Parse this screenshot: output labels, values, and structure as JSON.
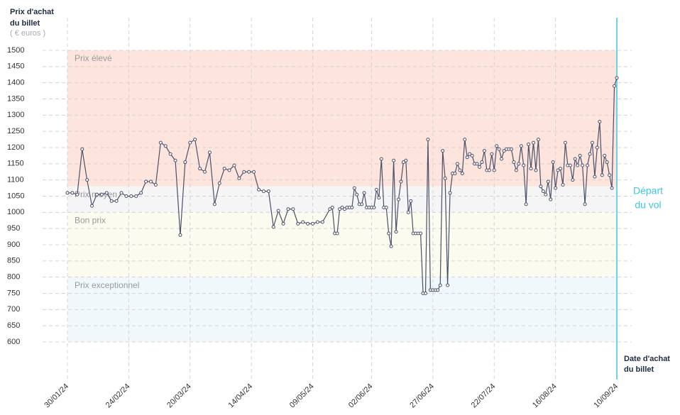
{
  "chart_data": {
    "type": "line",
    "y_title": [
      "Prix d'achat",
      "du billet"
    ],
    "y_unit": "( € euros )",
    "x_title": [
      "Date d'achat",
      "du billet"
    ],
    "departure_label": [
      "Départ",
      "du vol"
    ],
    "departure_color": "#3cc8e0",
    "line_color": "#4a5068",
    "ylim": [
      600,
      1500
    ],
    "yticks": [
      600,
      650,
      700,
      750,
      800,
      850,
      900,
      950,
      1000,
      1050,
      1100,
      1150,
      1200,
      1250,
      1300,
      1350,
      1400,
      1450,
      1500
    ],
    "xlim": [
      "30/01/24",
      "10/09/24"
    ],
    "xticks": [
      "30/01/24",
      "24/02/24",
      "20/03/24",
      "14/04/24",
      "09/05/24",
      "02/06/24",
      "27/06/24",
      "22/07/24",
      "16/08/24",
      "10/09/24"
    ],
    "grid": true,
    "bands": [
      {
        "label": "Prix élevé",
        "from": 1080,
        "to": 1500,
        "color": "#fde5de"
      },
      {
        "label": "Prix moyen",
        "from": 1000,
        "to": 1080,
        "color": "#f5f5f5"
      },
      {
        "label": "Bon prix",
        "from": 800,
        "to": 1000,
        "color": "#fbfbf0"
      },
      {
        "label": "Prix exceptionnel",
        "from": 600,
        "to": 800,
        "color": "#f1f8fc"
      }
    ],
    "x": [
      "30/01/24",
      "01/02/24",
      "03/02/24",
      "05/02/24",
      "07/02/24",
      "09/02/24",
      "11/02/24",
      "13/02/24",
      "15/02/24",
      "17/02/24",
      "19/02/24",
      "21/02/24",
      "23/02/24",
      "25/02/24",
      "27/02/24",
      "29/02/24",
      "02/03/24",
      "04/03/24",
      "06/03/24",
      "08/03/24",
      "10/03/24",
      "12/03/24",
      "14/03/24",
      "16/03/24",
      "18/03/24",
      "20/03/24",
      "22/03/24",
      "24/03/24",
      "26/03/24",
      "28/03/24",
      "30/03/24",
      "01/04/24",
      "03/04/24",
      "05/04/24",
      "07/04/24",
      "09/04/24",
      "11/04/24",
      "13/04/24",
      "15/04/24",
      "17/04/24",
      "19/04/24",
      "21/04/24",
      "23/04/24",
      "25/04/24",
      "27/04/24",
      "29/04/24",
      "01/05/24",
      "03/05/24",
      "05/05/24",
      "07/05/24",
      "09/05/24",
      "11/05/24",
      "13/05/24",
      "16/05/24",
      "17/05/24",
      "18/05/24",
      "19/05/24",
      "20/05/24",
      "21/05/24",
      "22/05/24",
      "23/05/24",
      "24/05/24",
      "25/05/24",
      "26/05/24",
      "27/05/24",
      "28/05/24",
      "29/05/24",
      "30/05/24",
      "31/05/24",
      "01/06/24",
      "02/06/24",
      "03/06/24",
      "04/06/24",
      "05/06/24",
      "06/06/24",
      "07/06/24",
      "08/06/24",
      "09/06/24",
      "10/06/24",
      "11/06/24",
      "12/06/24",
      "13/06/24",
      "14/06/24",
      "15/06/24",
      "16/06/24",
      "17/06/24",
      "18/06/24",
      "19/06/24",
      "20/06/24",
      "21/06/24",
      "22/06/24",
      "23/06/24",
      "24/06/24",
      "25/06/24",
      "26/06/24",
      "27/06/24",
      "28/06/24",
      "29/06/24",
      "30/06/24",
      "01/07/24",
      "02/07/24",
      "03/07/24",
      "04/07/24",
      "05/07/24",
      "06/07/24",
      "07/07/24",
      "08/07/24",
      "09/07/24",
      "10/07/24",
      "11/07/24",
      "12/07/24",
      "13/07/24",
      "14/07/24",
      "15/07/24",
      "16/07/24",
      "17/07/24",
      "18/07/24",
      "19/07/24",
      "20/07/24",
      "21/07/24",
      "22/07/24",
      "23/07/24",
      "24/07/24",
      "25/07/24",
      "26/07/24",
      "27/07/24",
      "28/07/24",
      "29/07/24",
      "30/07/24",
      "31/07/24",
      "01/08/24",
      "02/08/24",
      "03/08/24",
      "04/08/24",
      "05/08/24",
      "06/08/24",
      "07/08/24",
      "08/08/24",
      "09/08/24",
      "10/08/24",
      "11/08/24",
      "12/08/24",
      "13/08/24",
      "14/08/24",
      "15/08/24",
      "16/08/24",
      "17/08/24",
      "18/08/24",
      "19/08/24",
      "20/08/24",
      "21/08/24",
      "22/08/24",
      "23/08/24",
      "24/08/24",
      "25/08/24",
      "26/08/24",
      "27/08/24",
      "28/08/24",
      "29/08/24",
      "30/08/24",
      "31/08/24",
      "01/09/24",
      "02/09/24",
      "03/09/24",
      "04/09/24",
      "05/09/24",
      "06/09/24",
      "07/09/24",
      "08/09/24",
      "09/09/24",
      "10/09/24"
    ],
    "values": [
      1060,
      1060,
      1055,
      1195,
      1100,
      1020,
      1055,
      1055,
      1060,
      1035,
      1035,
      1060,
      1050,
      1050,
      1050,
      1060,
      1095,
      1095,
      1085,
      1215,
      1205,
      1180,
      1160,
      930,
      1155,
      1215,
      1225,
      1135,
      1125,
      1185,
      1025,
      1090,
      1135,
      1130,
      1145,
      1105,
      1125,
      1125,
      1125,
      1070,
      1065,
      1065,
      955,
      1005,
      965,
      1010,
      1010,
      965,
      970,
      965,
      965,
      970,
      970,
      1010,
      1015,
      935,
      935,
      1010,
      1015,
      1010,
      1015,
      1015,
      1015,
      1075,
      1055,
      1025,
      1025,
      1060,
      1015,
      1015,
      1015,
      1015,
      1070,
      1045,
      1165,
      1015,
      1015,
      935,
      895,
      1160,
      940,
      1040,
      1095,
      1155,
      1160,
      1000,
      1035,
      935,
      935,
      935,
      935,
      750,
      750,
      1225,
      760,
      760,
      760,
      760,
      775,
      1190,
      1105,
      775,
      1060,
      1120,
      1120,
      1150,
      1130,
      1120,
      1225,
      1170,
      1180,
      1175,
      1150,
      1150,
      1140,
      1155,
      1190,
      1130,
      1130,
      1180,
      1130,
      1205,
      1195,
      1165,
      1190,
      1195,
      1195,
      1195,
      1155,
      1130,
      1150,
      1205,
      1145,
      1025,
      1210,
      1135,
      1215,
      1130,
      1225,
      1080,
      1065,
      1055,
      1095,
      1040,
      1155,
      1075,
      1130,
      1135,
      1085,
      1215,
      1145,
      1145,
      1100,
      1165,
      1145,
      1175,
      1145,
      1025,
      1145,
      1180,
      1215,
      1110,
      1200,
      1280,
      1115,
      1175,
      1155,
      1115,
      1075,
      1390,
      1415
    ]
  }
}
